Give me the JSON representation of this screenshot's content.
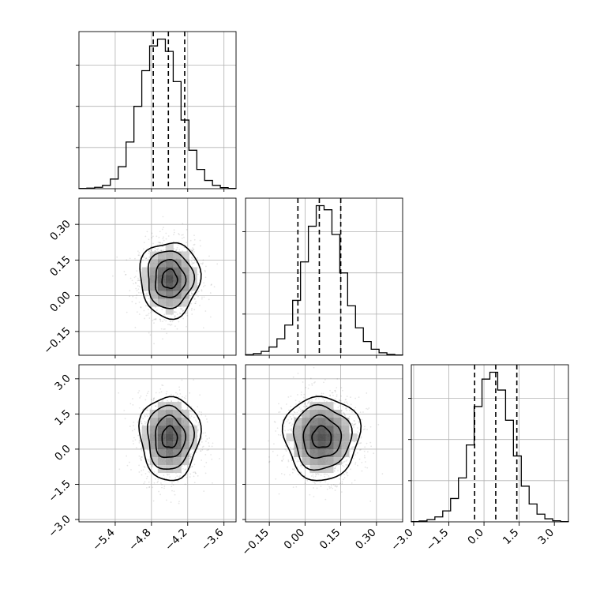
{
  "chart_data": {
    "type": "corner",
    "parameters": [
      {
        "mean": -4.5,
        "sd": 0.25,
        "range": [
          -6.0,
          -3.4
        ],
        "ticks": [
          -5.4,
          -4.8,
          -4.2,
          -3.6
        ],
        "tick_labels": [
          "−5.4",
          "−4.8",
          "−4.2",
          "−3.6"
        ],
        "quantiles": [
          -4.77,
          -4.52,
          -4.25
        ]
      },
      {
        "mean": 0.07,
        "sd": 0.08,
        "range": [
          -0.25,
          0.41
        ],
        "ticks": [
          -0.15,
          0.0,
          0.15,
          0.3
        ],
        "tick_labels": [
          "−0.15",
          "0.00",
          "0.15",
          "0.30"
        ],
        "quantiles": [
          -0.03,
          0.06,
          0.15
        ]
      },
      {
        "mean": 0.5,
        "sd": 0.9,
        "range": [
          -3.1,
          3.6
        ],
        "ticks": [
          -3.0,
          -1.5,
          0.0,
          1.5,
          3.0
        ],
        "tick_labels": [
          "−3.0",
          "−1.5",
          "0.0",
          "1.5",
          "3.0"
        ],
        "quantiles": [
          -0.4,
          0.5,
          1.4
        ]
      }
    ],
    "diagonal_histograms": [
      {
        "bins": 20,
        "counts": [
          1,
          2,
          5,
          12,
          35,
          80,
          170,
          300,
          430,
          520,
          545,
          500,
          390,
          250,
          140,
          70,
          30,
          12,
          4,
          1
        ]
      },
      {
        "bins": 20,
        "counts": [
          2,
          6,
          14,
          30,
          60,
          110,
          200,
          340,
          470,
          545,
          530,
          440,
          300,
          180,
          100,
          50,
          22,
          9,
          3,
          1
        ]
      },
      {
        "bins": 20,
        "counts": [
          1,
          3,
          8,
          18,
          40,
          85,
          160,
          280,
          420,
          520,
          545,
          480,
          370,
          240,
          130,
          65,
          28,
          11,
          4,
          1
        ]
      }
    ],
    "off_diagonal_panels": [
      {
        "x_param": 0,
        "y_param": 1,
        "contour_levels": [
          0.12,
          0.39,
          0.68,
          0.86
        ]
      },
      {
        "x_param": 0,
        "y_param": 2,
        "contour_levels": [
          0.12,
          0.39,
          0.68,
          0.86
        ]
      },
      {
        "x_param": 1,
        "y_param": 2,
        "contour_levels": [
          0.12,
          0.39,
          0.68,
          0.86
        ]
      }
    ],
    "grid": true
  }
}
